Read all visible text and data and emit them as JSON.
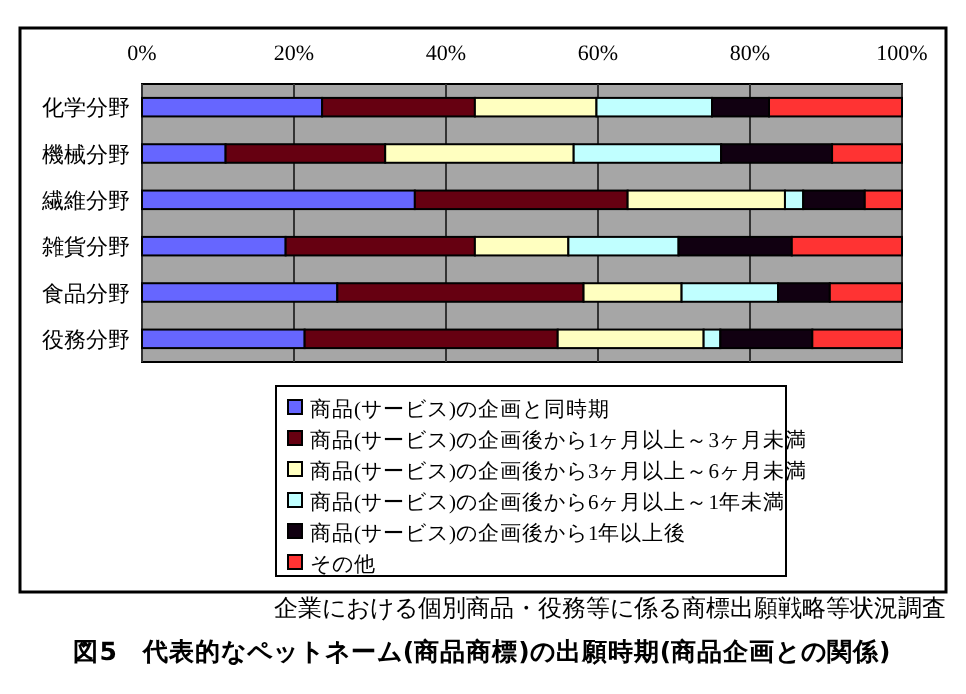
{
  "chart_data": {
    "type": "bar",
    "orientation": "horizontal",
    "stacked": true,
    "title": "図5　代表的なペットネーム(商品商標)の出願時期(商品企画との関係)",
    "annotations": [
      "企業における個別商品・役務等に係る商標出願戦略等状況調査"
    ],
    "categories": [
      "化学分野",
      "機械分野",
      "繊維分野",
      "雑貨分野",
      "食品分野",
      "役務分野"
    ],
    "series": [
      {
        "name": "商品(サービス)の企画と同時期",
        "color": "#6666ff",
        "values": [
          23.7,
          11.0,
          35.9,
          18.9,
          25.7,
          21.4
        ]
      },
      {
        "name": "商品(サービス)の企画後から1ヶ月以上～3ヶ月未満",
        "color": "#660011",
        "values": [
          20.1,
          21.0,
          28.0,
          24.9,
          32.4,
          33.3
        ]
      },
      {
        "name": "商品(サービス)の企画後から3ヶ月以上～6ヶ月未満",
        "color": "#ffffc0",
        "values": [
          16.0,
          24.8,
          20.7,
          12.3,
          12.9,
          19.2
        ]
      },
      {
        "name": "商品(サービス)の企画後から6ヶ月以上～1年未満",
        "color": "#c0ffff",
        "values": [
          15.2,
          19.4,
          2.4,
          14.5,
          12.7,
          2.2
        ]
      },
      {
        "name": "商品(サービス)の企画後から1年以上後",
        "color": "#110011",
        "values": [
          7.5,
          14.6,
          8.1,
          14.9,
          6.8,
          12.1
        ]
      },
      {
        "name": "その他",
        "color": "#ff3333",
        "values": [
          17.5,
          9.2,
          4.9,
          14.5,
          9.5,
          11.8
        ]
      }
    ],
    "xlim": [
      0,
      100
    ],
    "xticks": [
      {
        "value": 0,
        "label": "0%"
      },
      {
        "value": 20,
        "label": "20%"
      },
      {
        "value": 40,
        "label": "40%"
      },
      {
        "value": 60,
        "label": "60%"
      },
      {
        "value": 80,
        "label": "80%"
      },
      {
        "value": 100,
        "label": "100%"
      }
    ],
    "grid": "x",
    "legend": "bottom"
  }
}
